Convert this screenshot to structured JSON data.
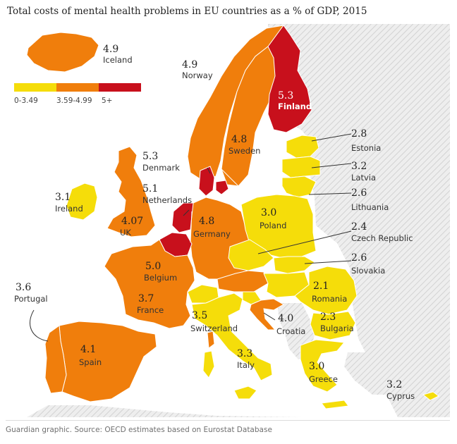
{
  "title": "Total costs of mental health problems in EU countries as a % of GDP, 2015",
  "source": "Guardian graphic. Source: OECD estimates based on Eurostat Database",
  "colors": {
    "low": "#f5dd0a",
    "mid": "#f07e0c",
    "high": "#c8101c",
    "no_data": "#e9e9e9",
    "sea": "#ffffff"
  },
  "legend": [
    {
      "label": "0-3.49",
      "class": "low"
    },
    {
      "label": "3.59-4.99",
      "class": "mid"
    },
    {
      "label": "5+",
      "class": "high"
    }
  ],
  "countries": [
    {
      "id": "iceland",
      "name": "Iceland",
      "value": "4.9",
      "class": "mid"
    },
    {
      "id": "norway",
      "name": "Norway",
      "value": "4.9",
      "class": "mid"
    },
    {
      "id": "finland",
      "name": "Finland",
      "value": "5.3",
      "class": "high"
    },
    {
      "id": "sweden",
      "name": "Sweden",
      "value": "4.8",
      "class": "mid"
    },
    {
      "id": "estonia",
      "name": "Estonia",
      "value": "2.8",
      "class": "low"
    },
    {
      "id": "latvia",
      "name": "Latvia",
      "value": "3.2",
      "class": "low"
    },
    {
      "id": "lithuania",
      "name": "Lithuania",
      "value": "2.6",
      "class": "low"
    },
    {
      "id": "denmark",
      "name": "Denmark",
      "value": "5.3",
      "class": "high"
    },
    {
      "id": "netherlands",
      "name": "Netherlands",
      "value": "5.1",
      "class": "high"
    },
    {
      "id": "ireland",
      "name": "Ireland",
      "value": "3.1",
      "class": "low"
    },
    {
      "id": "uk",
      "name": "UK",
      "value": "4.07",
      "class": "mid"
    },
    {
      "id": "germany",
      "name": "Germany",
      "value": "4.8",
      "class": "mid"
    },
    {
      "id": "poland",
      "name": "Poland",
      "value": "3.0",
      "class": "low"
    },
    {
      "id": "czech",
      "name": "Czech Republic",
      "value": "2.4",
      "class": "low"
    },
    {
      "id": "slovakia",
      "name": "Slovakia",
      "value": "2.6",
      "class": "low"
    },
    {
      "id": "belgium",
      "name": "Belgium",
      "value": "5.0",
      "class": "high"
    },
    {
      "id": "france",
      "name": "France",
      "value": "3.7",
      "class": "mid"
    },
    {
      "id": "portugal",
      "name": "Portugal",
      "value": "3.6",
      "class": "mid"
    },
    {
      "id": "spain",
      "name": "Spain",
      "value": "4.1",
      "class": "mid"
    },
    {
      "id": "switzerland",
      "name": "Switzerland",
      "value": "3.5",
      "class": "low"
    },
    {
      "id": "croatia",
      "name": "Croatia",
      "value": "4.0",
      "class": "mid"
    },
    {
      "id": "romania",
      "name": "Romania",
      "value": "2.1",
      "class": "low"
    },
    {
      "id": "bulgaria",
      "name": "Bulgaria",
      "value": "2.3",
      "class": "low"
    },
    {
      "id": "italy",
      "name": "Italy",
      "value": "3.3",
      "class": "low"
    },
    {
      "id": "greece",
      "name": "Greece",
      "value": "3.0",
      "class": "low"
    },
    {
      "id": "cyprus",
      "name": "Cyprus",
      "value": "3.2",
      "class": "low"
    }
  ]
}
